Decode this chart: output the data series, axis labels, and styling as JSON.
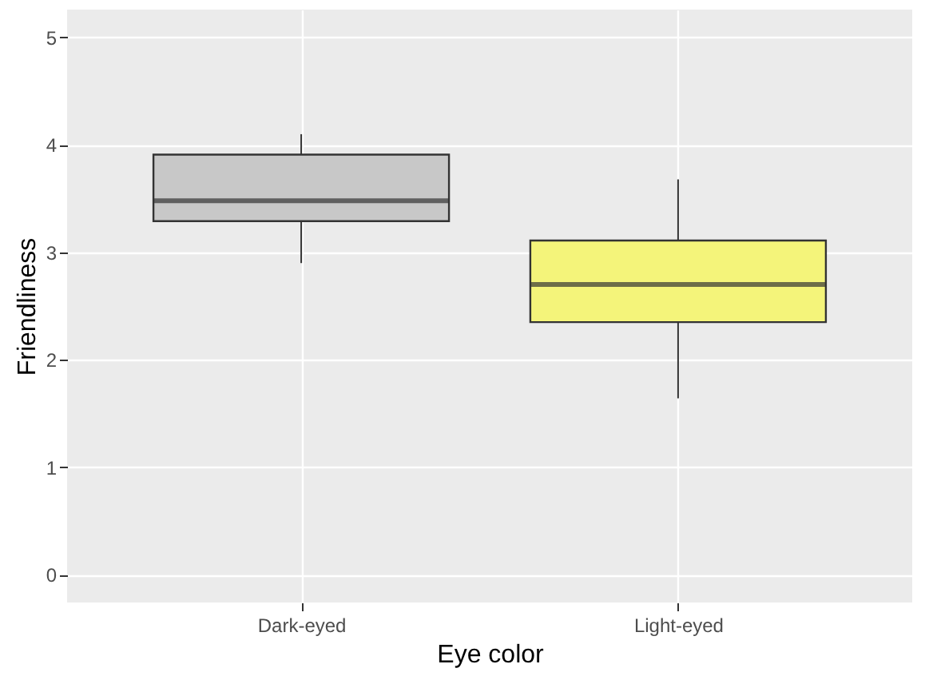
{
  "chart_data": {
    "type": "box",
    "xlabel": "Eye color",
    "ylabel": "Friendliness",
    "categories": [
      "Dark-eyed",
      "Light-eyed"
    ],
    "boxes": [
      {
        "low": 2.9,
        "q1": 3.29,
        "median": 3.48,
        "q3": 3.91,
        "high": 4.1
      },
      {
        "low": 1.64,
        "q1": 2.35,
        "median": 2.7,
        "q3": 3.11,
        "high": 3.68
      }
    ],
    "colors": [
      "#c8c8c8",
      "#f4f47a"
    ],
    "ylim": [
      -0.26,
      5.26
    ],
    "yticks": [
      0,
      1,
      2,
      3,
      4,
      5
    ],
    "grid": true
  }
}
